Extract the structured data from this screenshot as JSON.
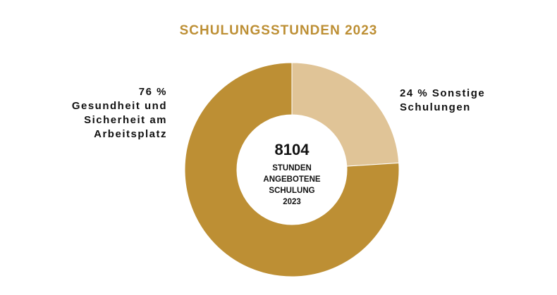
{
  "chart_data": {
    "type": "pie",
    "title": "SCHULUNGSSTUNDEN 2023",
    "donut": true,
    "slices": [
      {
        "label_lines": [
          "24 % Sonstige",
          "Schulungen"
        ],
        "value": 24,
        "color": "#E0C497"
      },
      {
        "label_lines": [
          "76 %",
          "Gesundheit und",
          "Sicherheit am",
          "Arbeitsplatz"
        ],
        "value": 76,
        "color": "#BD8F34"
      }
    ],
    "center": {
      "total": "8104",
      "lines": [
        "STUNDEN",
        "ANGEBOTENE",
        "SCHULUNG",
        "2023"
      ]
    }
  }
}
